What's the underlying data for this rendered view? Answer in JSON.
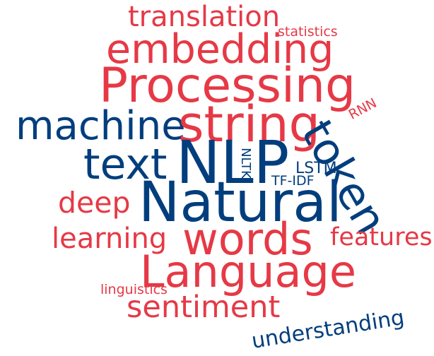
{
  "colors": {
    "red": "#e63946",
    "blue": "#023e7d"
  },
  "words": [
    {
      "text": "translation",
      "color": "red"
    },
    {
      "text": "statistics",
      "color": "red"
    },
    {
      "text": "embedding",
      "color": "red"
    },
    {
      "text": "Processing",
      "color": "red"
    },
    {
      "text": "machine",
      "color": "blue"
    },
    {
      "text": "string",
      "color": "red"
    },
    {
      "text": "token",
      "color": "blue"
    },
    {
      "text": "RNN",
      "color": "red"
    },
    {
      "text": "text",
      "color": "blue"
    },
    {
      "text": "NLP",
      "color": "blue"
    },
    {
      "text": "NLTK",
      "color": "blue"
    },
    {
      "text": "LSTM",
      "color": "blue"
    },
    {
      "text": "TF-IDF",
      "color": "blue"
    },
    {
      "text": "deep",
      "color": "red"
    },
    {
      "text": "Natural",
      "color": "blue"
    },
    {
      "text": "learning",
      "color": "red"
    },
    {
      "text": "words",
      "color": "red"
    },
    {
      "text": "features",
      "color": "red"
    },
    {
      "text": "Language",
      "color": "red"
    },
    {
      "text": "linguistics",
      "color": "red"
    },
    {
      "text": "sentiment",
      "color": "red"
    },
    {
      "text": "understanding",
      "color": "blue"
    }
  ]
}
